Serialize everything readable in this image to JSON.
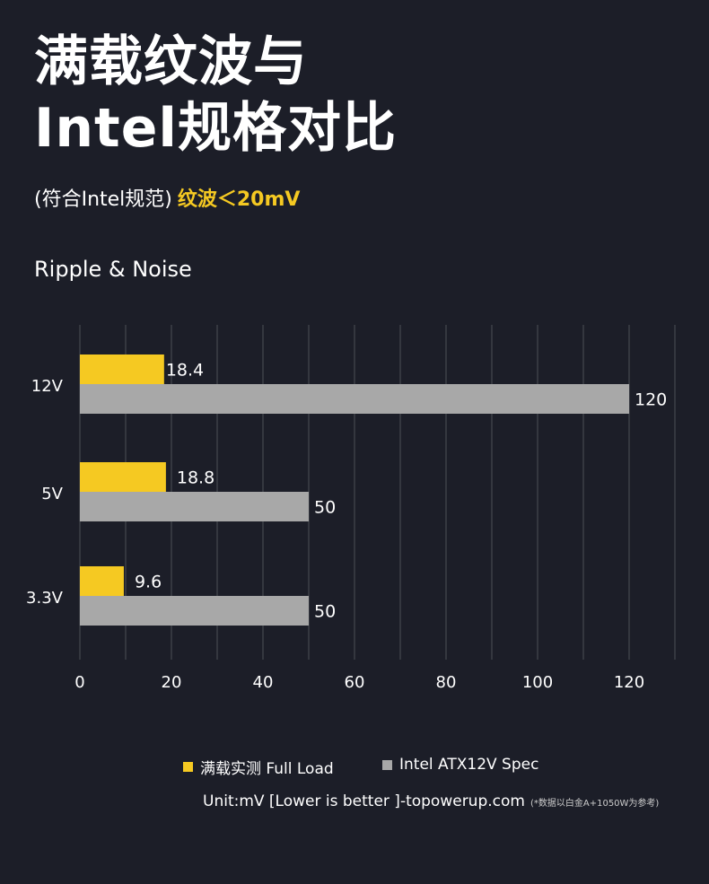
{
  "title_line1": "满载纹波与",
  "title_line2": "Intel规格对比",
  "subtitle": "(符合Intel规范)",
  "subtitle_highlight": "纹波＜20mV",
  "colors": {
    "background": "#1c1e28",
    "accent": "#f5c922",
    "spec": "#a8a8a8"
  },
  "chart_data": {
    "type": "bar",
    "orientation": "horizontal",
    "title": "Ripple & Noise",
    "categories": [
      "12V",
      "5V",
      "3.3V"
    ],
    "series": [
      {
        "name": "满载实测 Full Load",
        "color": "#f5c922",
        "values": [
          18.4,
          18.8,
          9.6
        ]
      },
      {
        "name": "Intel ATX12V Spec",
        "color": "#a8a8a8",
        "values": [
          120,
          50,
          50
        ]
      }
    ],
    "xticks": [
      0,
      20,
      40,
      60,
      80,
      100,
      120
    ],
    "xlim": [
      0,
      130
    ],
    "grid": true,
    "legend": "bottom"
  },
  "unit_text": "Unit:mV [Lower is better ]-topowerup.com",
  "footnote": "(*数据以白金A+1050W为参考)"
}
